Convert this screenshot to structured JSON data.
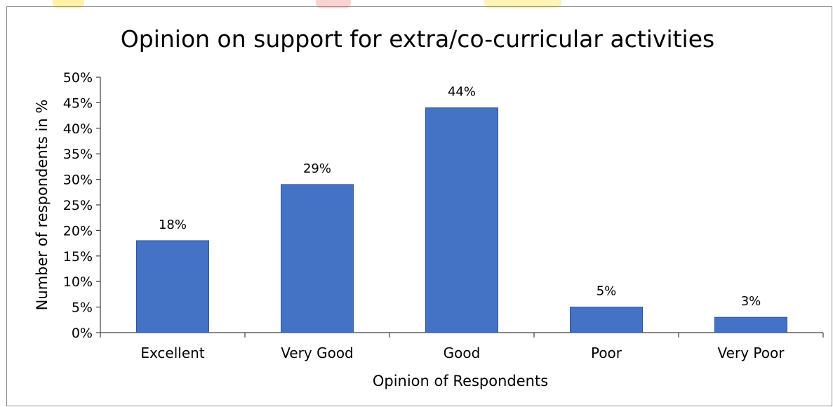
{
  "chart_data": {
    "type": "bar",
    "title": "Opinion on support for extra/co-curricular activities",
    "xlabel": "Opinion of Respondents",
    "ylabel": "Number of respondents in %",
    "categories": [
      "Excellent",
      "Very Good",
      "Good",
      "Poor",
      "Very Poor"
    ],
    "values": [
      18,
      29,
      44,
      5,
      3
    ],
    "data_labels": [
      "18%",
      "29%",
      "44%",
      "5%",
      "3%"
    ],
    "ylim": [
      0,
      50
    ],
    "yticks": [
      0,
      5,
      10,
      15,
      20,
      25,
      30,
      35,
      40,
      45,
      50
    ],
    "ytick_labels": [
      "0%",
      "5%",
      "10%",
      "15%",
      "20%",
      "25%",
      "30%",
      "35%",
      "40%",
      "45%",
      "50%"
    ],
    "grid": false,
    "legend": "none",
    "colors": {
      "bar": "#4472c4",
      "bar_edge": "#2f5597",
      "axis": "#404040",
      "text": "#000000"
    }
  }
}
